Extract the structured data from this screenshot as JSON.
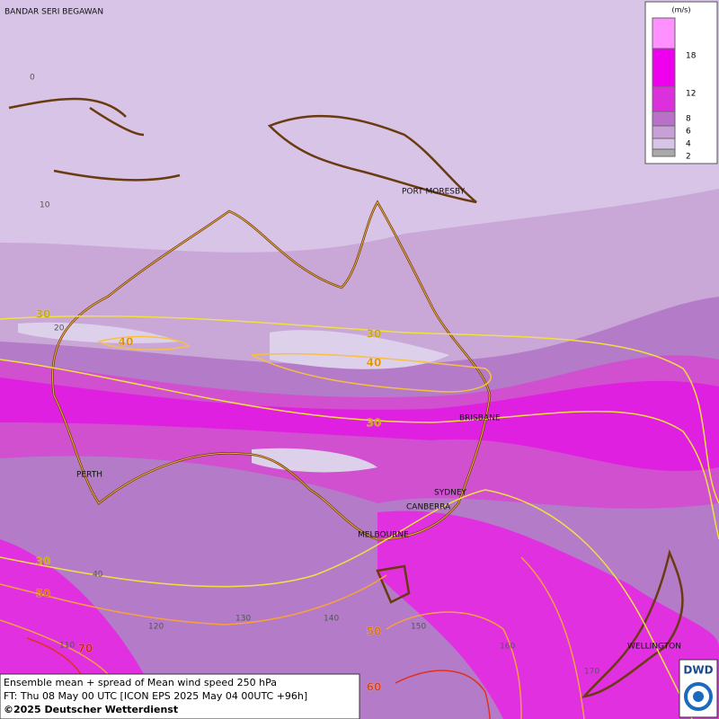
{
  "map": {
    "cities": [
      "BANDAR SERI BEGAWAN",
      "PORT MORESBY",
      "BRISBANE",
      "PERTH",
      "SYDNEY",
      "CANBERRA",
      "MELBOURNE",
      "WELLINGTON"
    ],
    "grid_labels": [
      "0",
      "10",
      "20",
      "40",
      "110",
      "120",
      "130",
      "140",
      "150",
      "160",
      "170"
    ],
    "contour_labels": [
      30,
      40,
      30,
      40,
      30,
      30,
      50,
      50,
      70,
      60
    ]
  },
  "legend": {
    "unit": "(m/s)",
    "ticks": [
      18,
      12,
      8,
      6,
      4,
      2
    ]
  },
  "footer": {
    "lines": [
      "Ensemble mean + spread of Mean wind speed 250 hPa",
      "FT: Thu 08 May 00 UTC [ICON EPS 2025 May 04 00UTC +96h]",
      "©2025 Deutscher Wetterdienst"
    ]
  },
  "logo": "DWD"
}
